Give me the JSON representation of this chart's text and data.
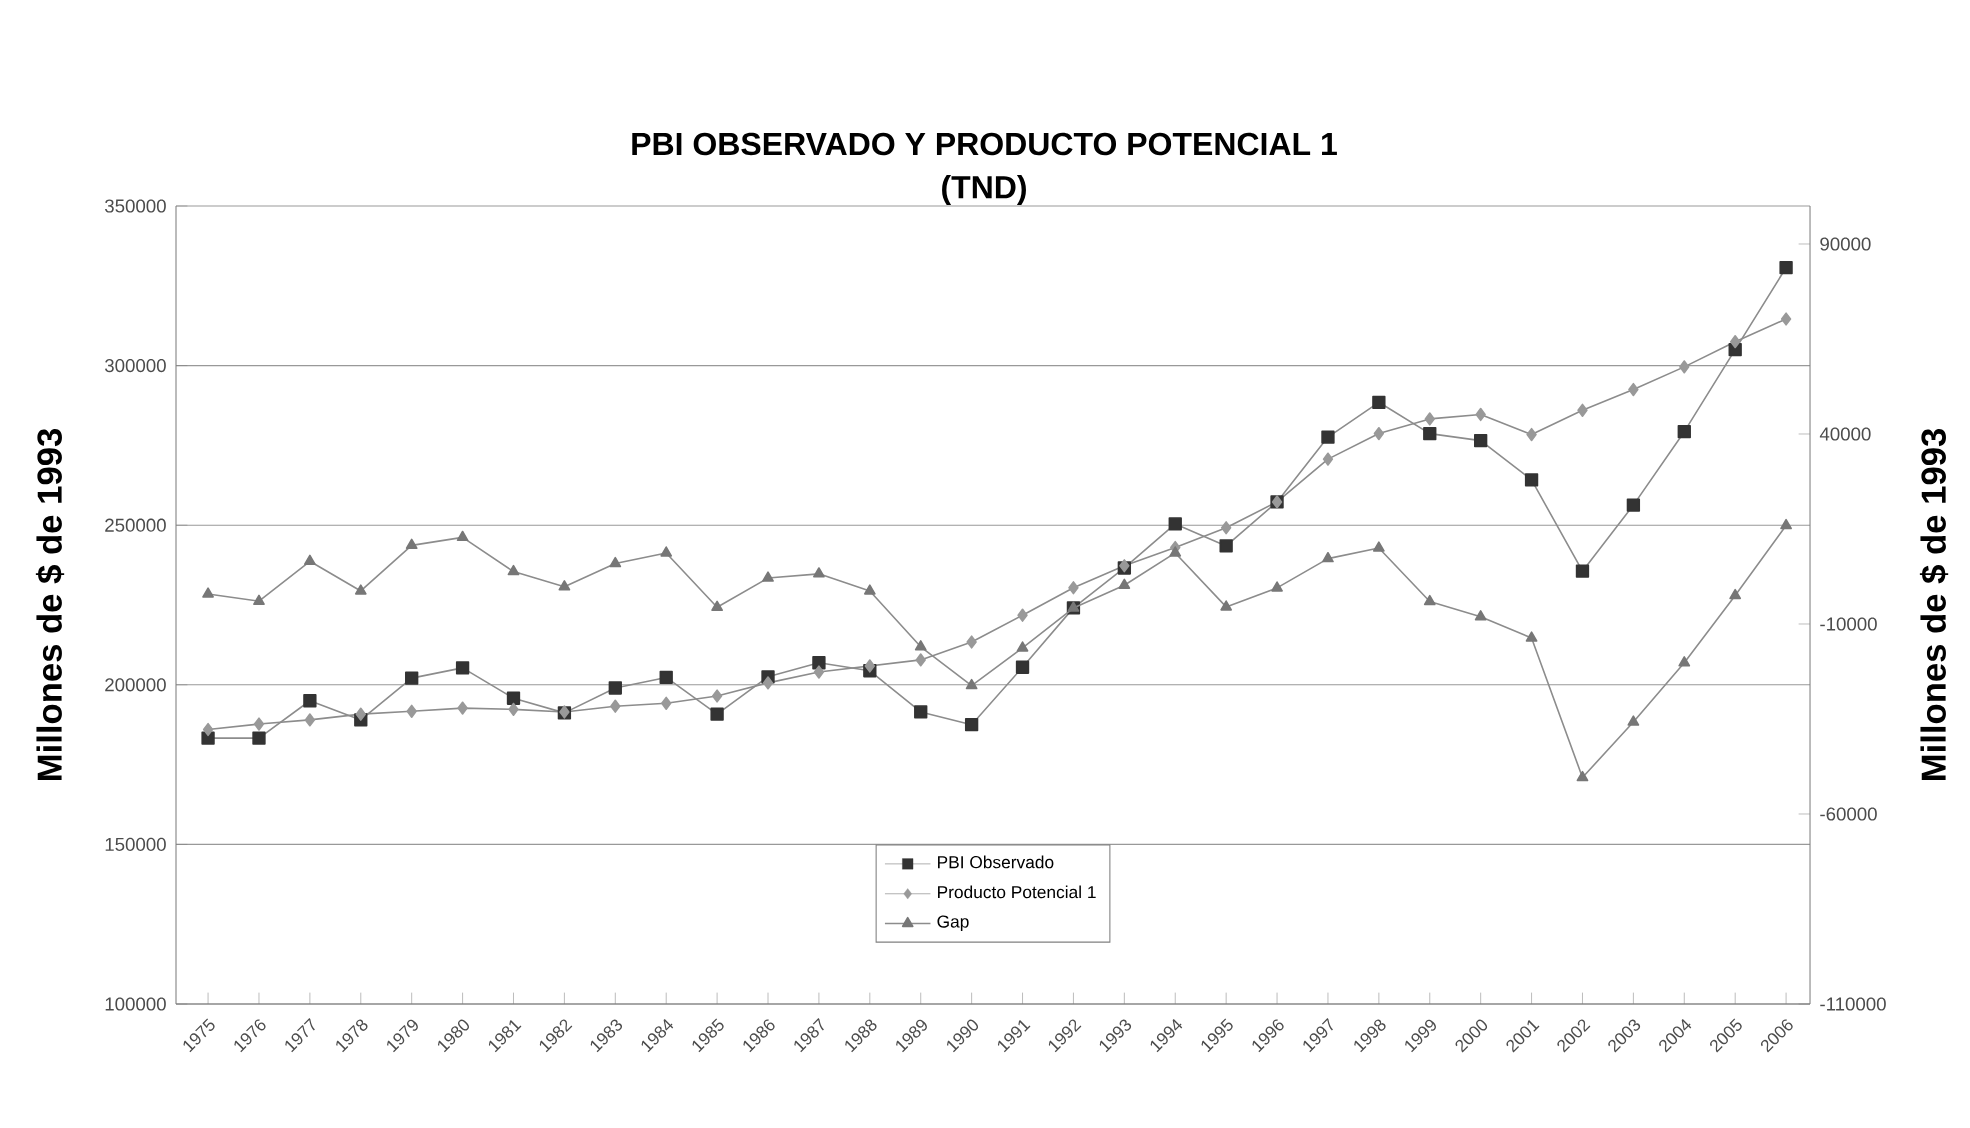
{
  "chart_data": {
    "type": "line",
    "title": "PBI OBSERVADO Y PRODUCTO POTENCIAL 1",
    "subtitle": "(TND)",
    "ylabel": "Millones de $ de 1993",
    "y2label": "Millones de $ de 1993",
    "categories": [
      "1975",
      "1976",
      "1977",
      "1978",
      "1979",
      "1980",
      "1981",
      "1982",
      "1983",
      "1984",
      "1985",
      "1986",
      "1987",
      "1988",
      "1989",
      "1990",
      "1991",
      "1992",
      "1993",
      "1994",
      "1995",
      "1996",
      "1997",
      "1998",
      "1999",
      "2000",
      "2001",
      "2002",
      "2003",
      "2004",
      "2005",
      "2006"
    ],
    "series": [
      {
        "name": "PBI Observado",
        "color": "#333333",
        "marker": "square",
        "values": [
          183300,
          183300,
          195000,
          189000,
          202100,
          205300,
          195800,
          191200,
          199000,
          202300,
          190800,
          202500,
          206900,
          204400,
          191500,
          187500,
          205500,
          224100,
          236600,
          250400,
          243500,
          257300,
          277600,
          288500,
          278700,
          276500,
          264200,
          235600,
          256300,
          279300,
          305000,
          330700
        ]
      },
      {
        "name": "Producto Potencial 1",
        "color": "#999999",
        "marker": "diamond",
        "values": [
          186000,
          187700,
          189000,
          190800,
          191700,
          192700,
          192300,
          191500,
          193300,
          194200,
          196500,
          200600,
          204000,
          205900,
          207800,
          213400,
          221800,
          230400,
          237300,
          243000,
          249200,
          257300,
          270700,
          278700,
          283300,
          284700,
          278400,
          286000,
          292500,
          299600,
          307500,
          314600
        ]
      },
      {
        "name": "Gap",
        "color": "#777777",
        "marker": "triangle",
        "axis": "y2",
        "values": [
          -2100,
          -4000,
          6500,
          -1300,
          10700,
          12800,
          3800,
          -200,
          5900,
          8700,
          -5600,
          2100,
          3200,
          -1300,
          -16000,
          -26200,
          -16300,
          -5800,
          200,
          8700,
          -5500,
          -500,
          7200,
          10000,
          -4100,
          -8100,
          -13700,
          -50400,
          -35800,
          -20200,
          -2500,
          15900
        ]
      }
    ],
    "ylim": [
      100000,
      350000
    ],
    "yticks": [
      100000,
      150000,
      200000,
      250000,
      300000,
      350000
    ],
    "y2lim": [
      -110000,
      100000
    ],
    "y2ticks": [
      -110000,
      -60000,
      -10000,
      40000,
      90000
    ],
    "grid": "y",
    "legend": "bottom",
    "line_style": "solid"
  }
}
